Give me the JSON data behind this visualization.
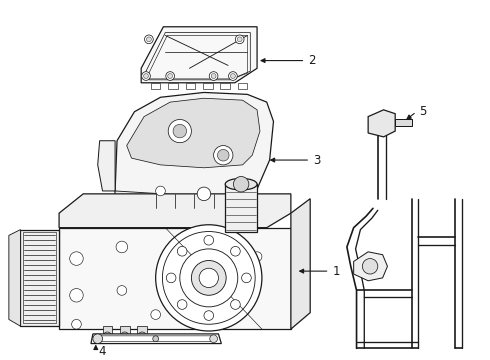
{
  "background_color": "#ffffff",
  "line_color": "#1a1a1a",
  "line_width": 0.9,
  "label_fontsize": 8.5,
  "fig_width": 4.9,
  "fig_height": 3.6,
  "dpi": 100
}
